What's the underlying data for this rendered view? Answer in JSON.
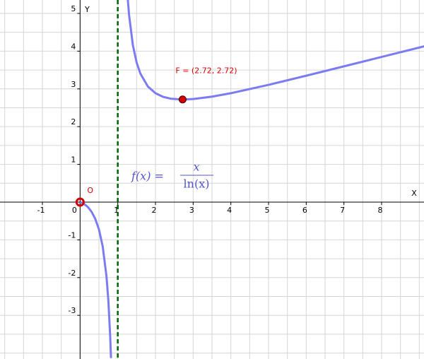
{
  "chart_data": {
    "type": "line",
    "xlabel": "X",
    "ylabel": "Y",
    "xlim": [
      -2.125,
      9.125
    ],
    "ylim": [
      -4.157,
      5.355
    ],
    "xticks": [
      -1,
      0,
      1,
      2,
      3,
      4,
      5,
      6,
      7,
      8
    ],
    "yticks": [
      -3,
      -2,
      -1,
      1,
      2,
      3,
      4,
      5
    ],
    "grid": true,
    "grid_step": 0.5,
    "series": [
      {
        "color": "#7b7bf2",
        "x": [
          0,
          0.1,
          0.2,
          0.3,
          0.4,
          0.5,
          0.6,
          0.7,
          0.75,
          0.8,
          0.82,
          null,
          1.26,
          1.3,
          1.4,
          1.5,
          1.6,
          1.8,
          2,
          2.2,
          2.4,
          2.72,
          3,
          3.5,
          4,
          5,
          6,
          7,
          8,
          9,
          9.13
        ],
        "values": [
          0,
          -0.043,
          -0.124,
          -0.249,
          -0.437,
          -0.721,
          -1.175,
          -1.963,
          -2.607,
          -3.585,
          -4.132,
          null,
          5.452,
          4.955,
          4.161,
          3.699,
          3.404,
          3.062,
          2.885,
          2.79,
          2.741,
          2.718,
          2.731,
          2.794,
          2.885,
          3.107,
          3.349,
          3.597,
          3.847,
          4.096,
          4.128
        ]
      }
    ],
    "asymptote_x": 1,
    "asymptote_color": "#006400",
    "points": [
      {
        "label": "O",
        "x": 0,
        "y": 0
      },
      {
        "label": "F = (2.72, 2.72)",
        "x": 2.72,
        "y": 2.72
      }
    ],
    "point_color": "#d40000",
    "formula": {
      "lhs": "f(x) =",
      "numerator": "x",
      "denominator": "ln(x)"
    }
  }
}
